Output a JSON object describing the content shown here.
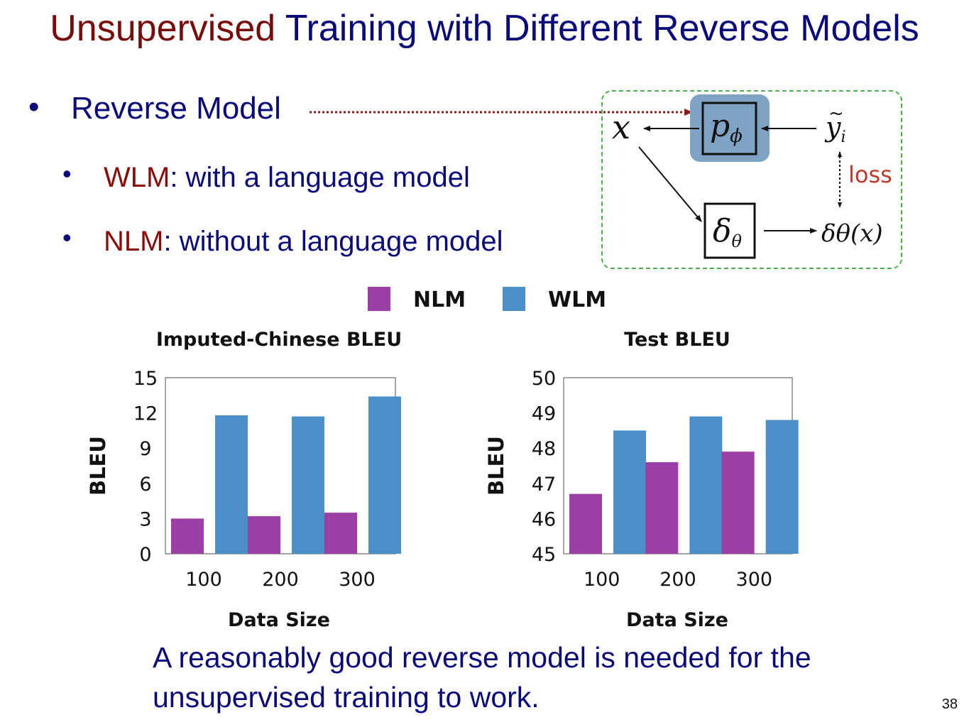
{
  "slide": {
    "title_accent": "Unsupervised",
    "title_rest": " Training with Different Reverse Models",
    "page_number": "38",
    "conclusion": "A reasonably good reverse model is needed for the unsupervised training to work."
  },
  "bullets": {
    "main": "Reverse Model",
    "sub": [
      {
        "term": "WLM",
        "rest": ": with a language model"
      },
      {
        "term": "NLM",
        "rest": ": without a language model"
      }
    ]
  },
  "diagram": {
    "x_label": "x",
    "p_label": "p",
    "p_sub": "ϕ",
    "y_label": "y",
    "y_sub": "i",
    "delta_label": "δ",
    "delta_sub": "θ",
    "delta_out": "δθ(x)",
    "loss_label": "loss",
    "colors": {
      "highlight": "#7fa3c4",
      "loss": "#c0392b",
      "border": "#4caf50",
      "pointer": "#8b1a1a"
    }
  },
  "chart_data": [
    {
      "type": "bar",
      "title": "Imputed-Chinese BLEU",
      "xlabel": "Data Size",
      "ylabel": "BLEU",
      "categories": [
        "100",
        "200",
        "300"
      ],
      "ylim": [
        0,
        15
      ],
      "yticks": [
        "0",
        "3",
        "6",
        "9",
        "12",
        "15"
      ],
      "series": [
        {
          "name": "NLM",
          "values": [
            3.0,
            3.2,
            3.5
          ],
          "color": "#9b3fa6"
        },
        {
          "name": "WLM",
          "values": [
            11.8,
            11.7,
            13.4
          ],
          "color": "#4a8fc7"
        }
      ],
      "grid": false,
      "legend": "top"
    },
    {
      "type": "bar",
      "title": "Test BLEU",
      "xlabel": "Data Size",
      "ylabel": "BLEU",
      "categories": [
        "100",
        "200",
        "300"
      ],
      "ylim": [
        45,
        50
      ],
      "yticks": [
        "45",
        "46",
        "47",
        "48",
        "49",
        "50"
      ],
      "series": [
        {
          "name": "NLM",
          "values": [
            46.7,
            47.6,
            47.9
          ],
          "color": "#9b3fa6"
        },
        {
          "name": "WLM",
          "values": [
            48.5,
            48.9,
            48.8
          ],
          "color": "#4a8fc7"
        }
      ],
      "grid": false,
      "legend": "top"
    }
  ]
}
